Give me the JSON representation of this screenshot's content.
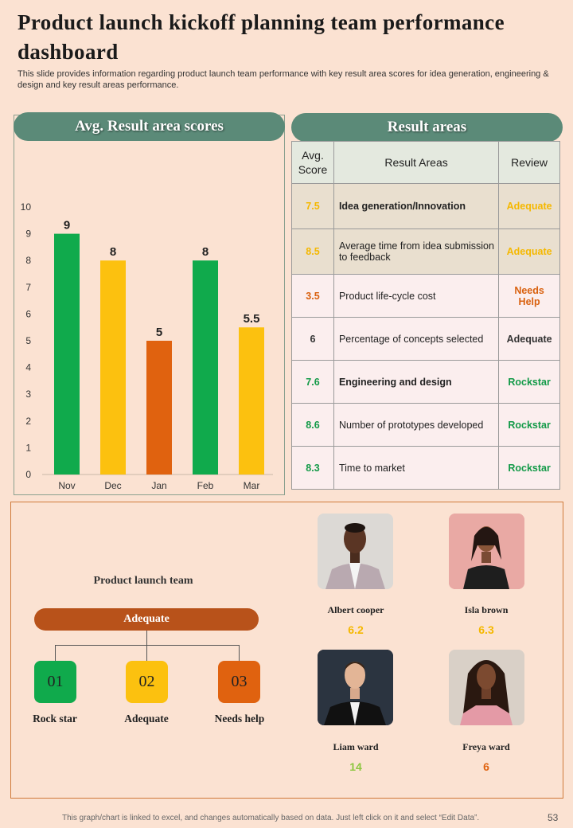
{
  "title": "Product launch kickoff planning team performance dashboard",
  "subtitle": "This slide provides information regarding product launch team performance with key result area scores for idea generation, engineering & design and key result areas performance.",
  "chart_header": "Avg. Result area scores",
  "chart_data": {
    "type": "bar",
    "categories": [
      "Nov",
      "Dec",
      "Jan",
      "Feb",
      "Mar"
    ],
    "values": [
      9,
      8,
      5,
      8,
      5.5
    ],
    "data_labels": [
      "9",
      "8",
      "5",
      "8",
      "5.5"
    ],
    "bar_colors": [
      "#10aa4c",
      "#fcc10f",
      "#e0620f",
      "#10aa4c",
      "#fcc10f"
    ],
    "ylim": [
      0,
      10
    ],
    "yticks": [
      "0",
      "1",
      "2",
      "3",
      "4",
      "5",
      "6",
      "7",
      "8",
      "9",
      "10"
    ],
    "title": "",
    "xlabel": "",
    "ylabel": "",
    "grid": false
  },
  "table_header": "Result areas",
  "table": {
    "columns": [
      "Avg. Score",
      "Result Areas",
      "Review"
    ],
    "rows": [
      {
        "score": "7.5",
        "area": "Idea generation/Innovation",
        "review": "Adequate",
        "score_color": "#f5b800",
        "review_color": "#f5b800"
      },
      {
        "score": "8.5",
        "area": "Average time from idea submission to feedback",
        "review": "Adequate",
        "score_color": "#f5b800",
        "review_color": "#f5b800"
      },
      {
        "score": "3.5",
        "area": "Product life-cycle cost",
        "review": "Needs Help",
        "score_color": "#d9610f",
        "review_color": "#d9610f"
      },
      {
        "score": "6",
        "area": "Percentage of concepts selected",
        "review": "Adequate",
        "score_color": "#333333",
        "review_color": "#333333"
      },
      {
        "score": "7.6",
        "area": "Engineering and design",
        "review": "Rockstar",
        "score_color": "#139a48",
        "review_color": "#139a48"
      },
      {
        "score": "8.6",
        "area": "Number of prototypes developed",
        "review": "Rockstar",
        "score_color": "#139a48",
        "review_color": "#139a48"
      },
      {
        "score": "8.3",
        "area": "Time to market",
        "review": "Rockstar",
        "score_color": "#139a48",
        "review_color": "#139a48"
      }
    ]
  },
  "team": {
    "label": "Product launch team",
    "status": "Adequate",
    "levels": [
      {
        "number": "01",
        "label": "Rock star",
        "color": "#10aa4c"
      },
      {
        "number": "02",
        "label": "Adequate",
        "color": "#fcc10f"
      },
      {
        "number": "03",
        "label": "Needs help",
        "color": "#e0620f"
      }
    ],
    "members": [
      {
        "name": "Albert cooper",
        "score": "6.2",
        "score_color": "#f5b800"
      },
      {
        "name": "Isla brown",
        "score": "6.3",
        "score_color": "#f5b800"
      },
      {
        "name": "Liam ward",
        "score": "14",
        "score_color": "#8cc63f"
      },
      {
        "name": "Freya ward",
        "score": "6",
        "score_color": "#e0620f"
      }
    ]
  },
  "footer": "This graph/chart is linked to excel, and changes automatically based on data. Just left click on it and select “Edit Data”.",
  "page_number": "53"
}
